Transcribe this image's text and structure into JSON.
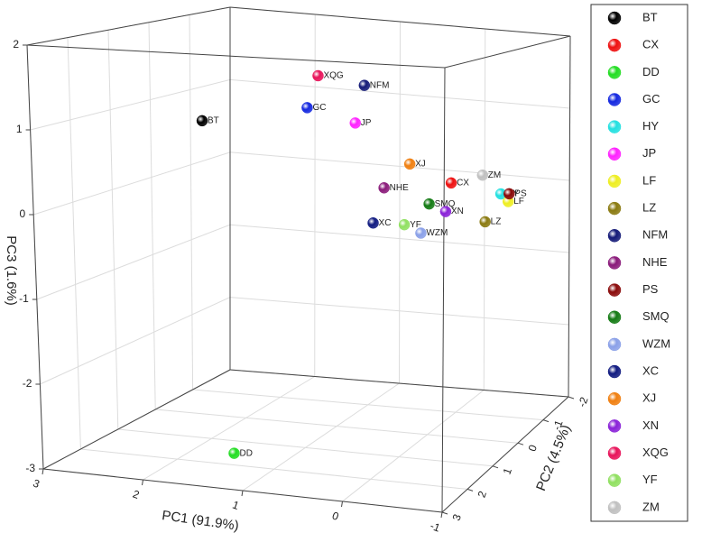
{
  "chart_data": {
    "type": "scatter3d",
    "xlabel": "PC1 (91.9%)",
    "ylabel": "PC2 (4.5%)",
    "zlabel": "PC3 (1.6%)",
    "xlim": [
      -1,
      3
    ],
    "xticks": [
      -1,
      0,
      1,
      2,
      3
    ],
    "ylim": [
      -2,
      3
    ],
    "yticks": [
      -2,
      -1,
      0,
      1,
      2,
      3
    ],
    "zlim": [
      -3,
      2
    ],
    "zticks": [
      -3,
      -2,
      -1,
      0,
      1,
      2
    ],
    "grid": true,
    "legend": "right",
    "series": [
      {
        "name": "BT",
        "color": "#000000",
        "x": [
          2.44
        ],
        "y": [
          0
        ],
        "z": [
          0.78
        ]
      },
      {
        "name": "CX",
        "color": "#ee1111",
        "x": [
          -0.26
        ],
        "y": [
          0
        ],
        "z": [
          0.23
        ]
      },
      {
        "name": "DD",
        "color": "#22dd22",
        "x": [
          1.08
        ],
        "y": [
          3
        ],
        "z": [
          -2.58
        ]
      },
      {
        "name": "GC",
        "color": "#1428e0",
        "x": [
          1.3
        ],
        "y": [
          0
        ],
        "z": [
          1.05
        ]
      },
      {
        "name": "HY",
        "color": "#22e0e0",
        "x": [
          -0.8
        ],
        "y": [
          0
        ],
        "z": [
          0.14
        ]
      },
      {
        "name": "JP",
        "color": "#ff22ff",
        "x": [
          0.78
        ],
        "y": [
          0
        ],
        "z": [
          0.9
        ]
      },
      {
        "name": "LF",
        "color": "#eeee22",
        "x": [
          -0.88
        ],
        "y": [
          0
        ],
        "z": [
          0.05
        ]
      },
      {
        "name": "LZ",
        "color": "#8a7a10",
        "x": [
          -0.63
        ],
        "y": [
          0
        ],
        "z": [
          -0.23
        ]
      },
      {
        "name": "NFM",
        "color": "#141a78",
        "x": [
          0.68
        ],
        "y": [
          0
        ],
        "z": [
          1.39
        ]
      },
      {
        "name": "NHE",
        "color": "#8a1a7a",
        "x": [
          0.47
        ],
        "y": [
          0
        ],
        "z": [
          0.1
        ]
      },
      {
        "name": "PS",
        "color": "#8a0a0a",
        "x": [
          -0.89
        ],
        "y": [
          0
        ],
        "z": [
          0.15
        ]
      },
      {
        "name": "SMQ",
        "color": "#137a13",
        "x": [
          -0.02
        ],
        "y": [
          0
        ],
        "z": [
          -0.06
        ]
      },
      {
        "name": "WZM",
        "color": "#8aa0e8",
        "x": [
          0.07
        ],
        "y": [
          0
        ],
        "z": [
          -0.44
        ]
      },
      {
        "name": "XC",
        "color": "#101a80",
        "x": [
          0.59
        ],
        "y": [
          0
        ],
        "z": [
          -0.36
        ]
      },
      {
        "name": "XJ",
        "color": "#f07f10",
        "x": [
          0.19
        ],
        "y": [
          0
        ],
        "z": [
          0.43
        ]
      },
      {
        "name": "XN",
        "color": "#8a22d8",
        "x": [
          -0.2
        ],
        "y": [
          0
        ],
        "z": [
          -0.14
        ]
      },
      {
        "name": "XQG",
        "color": "#e8145a",
        "x": [
          1.18
        ],
        "y": [
          0
        ],
        "z": [
          1.47
        ]
      },
      {
        "name": "YF",
        "color": "#90e060",
        "x": [
          0.25
        ],
        "y": [
          0
        ],
        "z": [
          -0.35
        ]
      },
      {
        "name": "ZM",
        "color": "#c0c0c0",
        "x": [
          -0.6
        ],
        "y": [
          0
        ],
        "z": [
          0.36
        ]
      }
    ]
  }
}
